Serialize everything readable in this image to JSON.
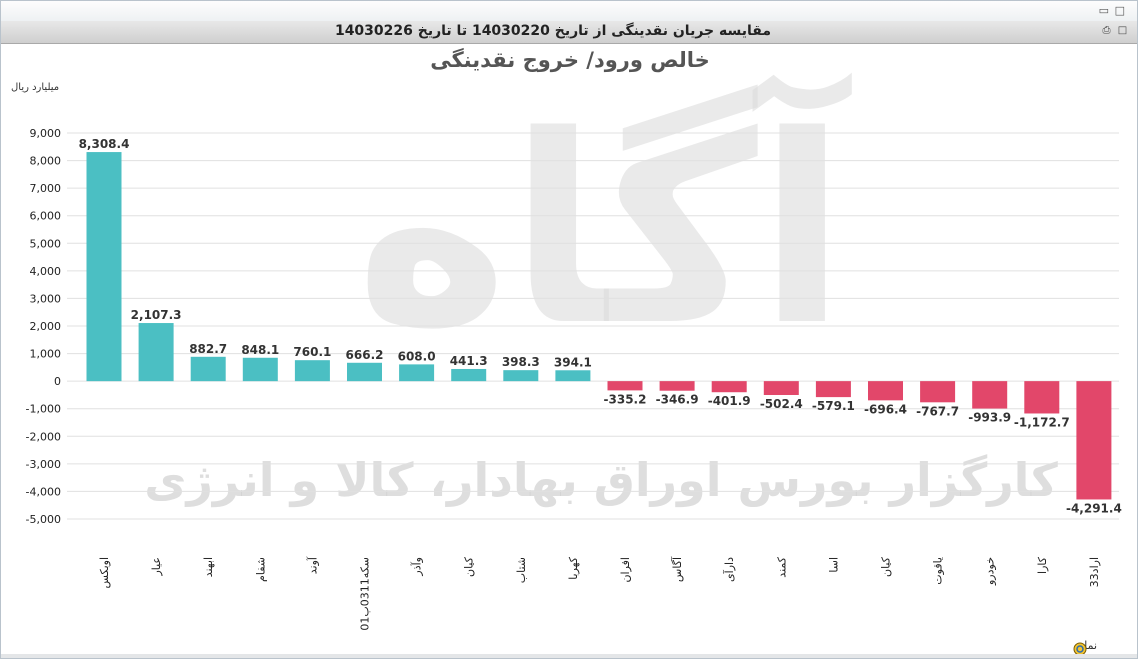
{
  "window": {
    "title": "مقایسه جریان نقدینگی از تاریخ 14030220 تا تاریخ 14030226",
    "minimize_glyph": "▭",
    "maximize_glyph": "□",
    "print_icon": "printer-icon",
    "expand_icon": "expand-icon"
  },
  "watermark": {
    "text": "کارگزار بورس اوراق بهادار، کالا و انرژی",
    "logo_text": "آگاه"
  },
  "colors": {
    "positive": "#4bbfc3",
    "negative": "#e2476a",
    "grid": "#e0e0e0",
    "axis_text": "#222222"
  },
  "chart_data": {
    "type": "bar",
    "title": "خالص ورود/ خروج نقدینگی",
    "ylabel": "میلیارد ریال",
    "xlabel": "نماد",
    "ylim": [
      -5000,
      9000
    ],
    "ytick_step": 1000,
    "yticks": [
      "9,000",
      "8,000",
      "7,000",
      "6,000",
      "5,000",
      "4,000",
      "3,000",
      "2,000",
      "1,000",
      "0",
      "-1,000",
      "-2,000",
      "-3,000",
      "-4,000",
      "-5,000"
    ],
    "grid": true,
    "categories": [
      "اوبکس",
      "عیار",
      "ابهند",
      "شفام",
      "آوند",
      "سکه0311ب01",
      "وآذر",
      "کیان",
      "شتاب",
      "کهربا",
      "افران",
      "آگاس",
      "دارآی",
      "کمند",
      "اسا",
      "کیان",
      "یاقوت",
      "خودرو",
      "کارا",
      "اراد33"
    ],
    "values": [
      8308.4,
      2107.3,
      882.7,
      848.1,
      760.1,
      666.2,
      608.0,
      441.3,
      398.3,
      394.1,
      -335.2,
      -346.9,
      -401.9,
      -502.4,
      -579.1,
      -696.4,
      -767.7,
      -993.9,
      -1172.7,
      -4291.4
    ],
    "value_labels": [
      "8,308.4",
      "2,107.3",
      "882.7",
      "848.1",
      "760.1",
      "666.2",
      "608.0",
      "441.3",
      "398.3",
      "394.1",
      "-335.2",
      "-346.9",
      "-401.9",
      "-502.4",
      "-579.1",
      "-696.4",
      "-767.7",
      "-993.9",
      "-1,172.7",
      "-4,291.4"
    ]
  }
}
